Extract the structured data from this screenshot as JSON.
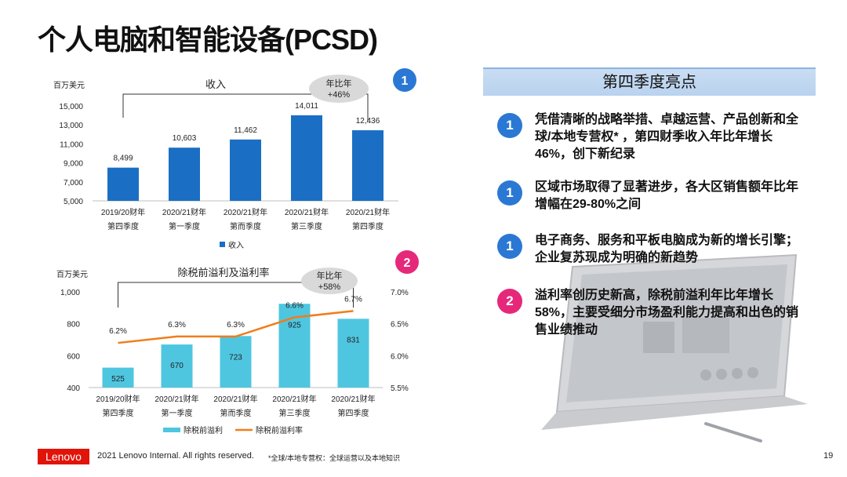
{
  "page": {
    "title": "个人电脑和智能设备(PCSD)",
    "page_number": "19"
  },
  "colors": {
    "bar_blue": "#1a6fc4",
    "bar_cyan": "#4fc6e0",
    "line_orange": "#f07d1a",
    "badge_blue": "#2b78d4",
    "badge_pink": "#e6287a",
    "logo_red": "#e1140a"
  },
  "chart_data": [
    {
      "type": "bar",
      "title": "收入",
      "ylabel": "百万美元",
      "xlabel": "",
      "ylim": [
        5000,
        15000
      ],
      "yticks": [
        "5,000",
        "7,000",
        "9,000",
        "11,000",
        "13,000",
        "15,000"
      ],
      "categories": [
        [
          "2019/20财年",
          "第四季度"
        ],
        [
          "2020/21财年",
          "第一季度"
        ],
        [
          "2020/21财年",
          "第而季度"
        ],
        [
          "2020/21财年",
          "第三季度"
        ],
        [
          "2020/21财年",
          "第四季度"
        ]
      ],
      "values": [
        8499,
        10603,
        11462,
        14011,
        12436
      ],
      "value_labels": [
        "8,499",
        "10,603",
        "11,462",
        "14,011",
        "12,436"
      ],
      "legend": [
        "收入"
      ],
      "annotation": [
        "年比年",
        "+46%"
      ],
      "badge": "1"
    },
    {
      "type": "bar+line",
      "title": "除税前溢利及溢利率",
      "ylabel": "百万美元",
      "ylim": [
        400,
        1000
      ],
      "yticks": [
        "400",
        "600",
        "800",
        "1,000"
      ],
      "y2lim": [
        5.5,
        7.0
      ],
      "y2ticks": [
        "5.5%",
        "6.0%",
        "6.5%",
        "7.0%"
      ],
      "categories": [
        [
          "2019/20财年",
          "第四季度"
        ],
        [
          "2020/21财年",
          "第一季度"
        ],
        [
          "2020/21财年",
          "第而季度"
        ],
        [
          "2020/21财年",
          "第三季度"
        ],
        [
          "2020/21财年",
          "第四季度"
        ]
      ],
      "series": [
        {
          "name": "除税前溢利",
          "type": "bar",
          "values": [
            525,
            670,
            723,
            925,
            831
          ],
          "labels": [
            "525",
            "670",
            "723",
            "925",
            "831"
          ]
        },
        {
          "name": "除税前溢利率",
          "type": "line",
          "values": [
            6.2,
            6.3,
            6.3,
            6.6,
            6.7
          ],
          "labels": [
            "6.2%",
            "6.3%",
            "6.3%",
            "6.6%",
            "6.7%"
          ]
        }
      ],
      "legend": [
        "除税前溢利",
        "除税前溢利率"
      ],
      "annotation": [
        "年比年",
        "+58%"
      ],
      "badge": "2"
    }
  ],
  "highlights": {
    "header": "第四季度亮点",
    "items": [
      {
        "badge": "1",
        "text": "凭借清晰的战略举措、卓越运营、产品创新和全球/本地专营权* ，第四财季收入年比年增长46%，创下新纪录"
      },
      {
        "badge": "1",
        "text": "区域市场取得了显著进步，各大区销售额年比年增幅在29-80%之间"
      },
      {
        "badge": "1",
        "text": "电子商务、服务和平板电脑成为新的增长引擎；企业复苏现成为明确的新趋势"
      },
      {
        "badge": "2",
        "text": "溢利率创历史新高，除税前溢利年比年增长58%，主要受细分市场盈利能力提高和出色的销售业绩推动"
      }
    ]
  },
  "footer": {
    "logo": "Lenovo",
    "copyright": "2021 Lenovo Internal. All rights reserved.",
    "footnote": "*全球/本地专营权：全球运营以及本地知识"
  }
}
